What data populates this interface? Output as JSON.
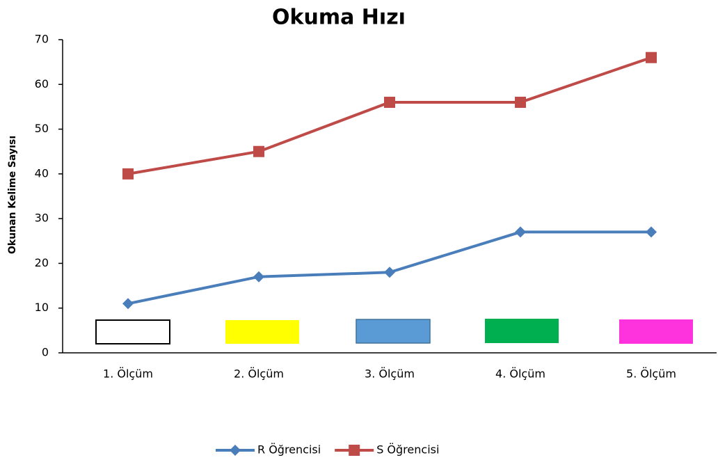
{
  "chart_data": {
    "type": "line",
    "title": "Okuma Hızı",
    "y_label": "Okunan Kelime Sayısı",
    "categories": [
      "1. Ölçüm",
      "2. Ölçüm",
      "3. Ölçüm",
      "4. Ölçüm",
      "5. Ölçüm"
    ],
    "series": [
      {
        "name": "R Öğrencisi",
        "color": "#4a7ebb",
        "marker": "diamond",
        "values": [
          11,
          17,
          18,
          27,
          27
        ]
      },
      {
        "name": "S Öğrencisi",
        "color": "#be4b48",
        "marker": "square",
        "values": [
          40,
          45,
          56,
          56,
          66
        ]
      }
    ],
    "ylim": [
      0,
      70
    ],
    "yticks": [
      0,
      10,
      20,
      30,
      40,
      50,
      60,
      70
    ],
    "grid": false,
    "legend": "bottom"
  }
}
